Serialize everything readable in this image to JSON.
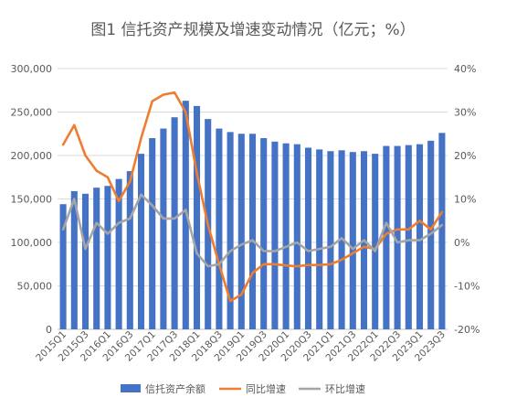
{
  "chart_data": {
    "type": "bar+line",
    "title": "图1  信托资产规模及增速变动情况（亿元；%）",
    "categories": [
      "2015Q1",
      "2015Q2",
      "2015Q3",
      "2015Q4",
      "2016Q1",
      "2016Q2",
      "2016Q3",
      "2016Q4",
      "2017Q1",
      "2017Q2",
      "2017Q3",
      "2017Q4",
      "2018Q1",
      "2018Q2",
      "2018Q3",
      "2018Q4",
      "2019Q1",
      "2019Q2",
      "2019Q3",
      "2019Q4",
      "2020Q1",
      "2020Q2",
      "2020Q3",
      "2020Q4",
      "2021Q1",
      "2021Q2",
      "2021Q3",
      "2021Q4",
      "2022Q1",
      "2022Q2",
      "2022Q3",
      "2022Q4",
      "2023Q1",
      "2023Q2",
      "2023Q3"
    ],
    "tick_labels": [
      "2015Q1",
      "2015Q3",
      "2016Q1",
      "2016Q3",
      "2017Q1",
      "2017Q3",
      "2018Q1",
      "2018Q3",
      "2019Q1",
      "2019Q3",
      "2020Q1",
      "2020Q3",
      "2021Q1",
      "2021Q3",
      "2022Q1",
      "2022Q3",
      "2023Q1",
      "2023Q3"
    ],
    "y_left": {
      "ticks": [
        "0",
        "50,000",
        "100,000",
        "150,000",
        "200,000",
        "250,000",
        "300,000"
      ],
      "range": [
        0,
        300000
      ]
    },
    "y_right": {
      "ticks": [
        "-20%",
        "-10%",
        "0%",
        "10%",
        "20%",
        "30%",
        "40%"
      ],
      "range": [
        -20,
        40
      ]
    },
    "series": [
      {
        "name": "信托资产余额",
        "kind": "bar",
        "axis": "left",
        "color": "#4472c4",
        "values": [
          144000,
          159000,
          156000,
          163000,
          165000,
          173000,
          182000,
          202000,
          220000,
          231000,
          244000,
          263000,
          257000,
          242000,
          231000,
          227000,
          225000,
          225000,
          220000,
          216000,
          214000,
          213000,
          209000,
          207000,
          205000,
          206000,
          204000,
          205000,
          202000,
          211000,
          211000,
          212000,
          213000,
          217000,
          226000
        ]
      },
      {
        "name": "同比增速",
        "kind": "line",
        "axis": "right",
        "color": "#ed7d31",
        "values": [
          22.5,
          27.0,
          20.0,
          16.5,
          15.0,
          9.5,
          14.0,
          24.0,
          32.5,
          34.0,
          34.5,
          30.0,
          16.0,
          4.0,
          -5.0,
          -13.5,
          -12.0,
          -7.0,
          -5.0,
          -5.0,
          -5.3,
          -5.5,
          -5.2,
          -5.2,
          -5.0,
          -4.0,
          -2.5,
          -1.0,
          -1.5,
          2.0,
          3.0,
          3.0,
          5.0,
          3.0,
          7.0
        ]
      },
      {
        "name": "环比增速",
        "kind": "line",
        "axis": "right",
        "color": "#a5a5a5",
        "values": [
          3.0,
          10.0,
          -1.5,
          4.5,
          2.0,
          4.5,
          5.5,
          11.0,
          8.5,
          5.5,
          5.5,
          7.5,
          -2.5,
          -5.5,
          -5.0,
          -2.0,
          -0.5,
          0.5,
          -2.0,
          -2.0,
          -1.0,
          0.0,
          -2.0,
          -1.5,
          -1.0,
          1.0,
          -1.5,
          0.5,
          -2.0,
          4.5,
          0.0,
          0.5,
          0.5,
          2.0,
          4.0
        ]
      }
    ],
    "legend_position": "bottom",
    "grid": true
  }
}
